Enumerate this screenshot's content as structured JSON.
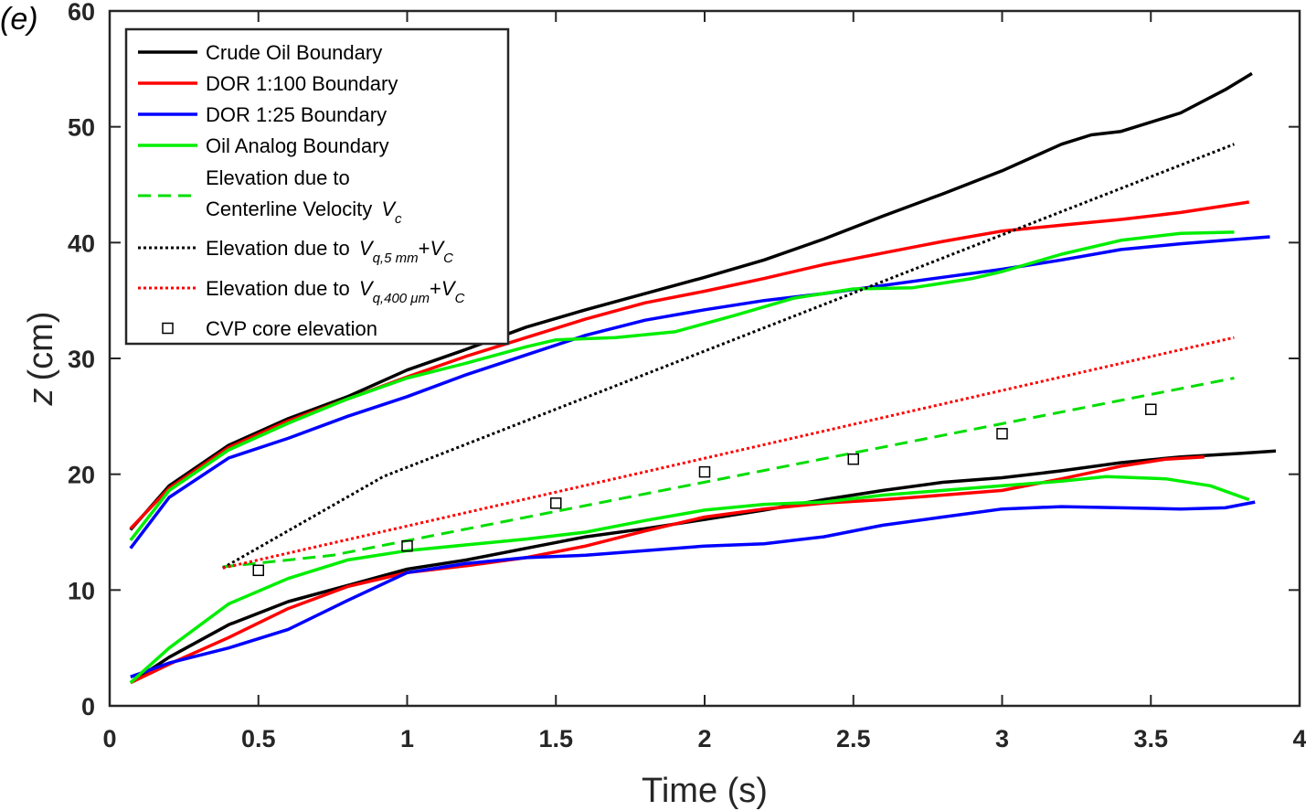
{
  "panel_label": "(e)",
  "chart_data": {
    "type": "line",
    "xlabel": "Time (s)",
    "ylabel": "z (cm)",
    "ylabel_var": "z",
    "ylabel_unit": "(cm)",
    "xlim": [
      0,
      4
    ],
    "ylim": [
      0,
      60
    ],
    "xticks": [
      0,
      0.5,
      1,
      1.5,
      2,
      2.5,
      3,
      3.5,
      4
    ],
    "xtick_labels": [
      "0",
      "0.5",
      "1",
      "1.5",
      "2",
      "2.5",
      "3",
      "3.5",
      "4"
    ],
    "yticks": [
      0,
      10,
      20,
      30,
      40,
      50,
      60
    ],
    "ytick_labels": [
      "0",
      "10",
      "20",
      "30",
      "40",
      "50",
      "60"
    ],
    "grid": false,
    "legend_position": "top-left",
    "series": [
      {
        "name": "Crude Oil Boundary",
        "color": "#000000",
        "style": "solid",
        "upper": [
          [
            0.07,
            15.2
          ],
          [
            0.2,
            19.0
          ],
          [
            0.4,
            22.5
          ],
          [
            0.6,
            24.8
          ],
          [
            0.8,
            26.7
          ],
          [
            1.0,
            29.0
          ],
          [
            1.2,
            30.8
          ],
          [
            1.4,
            32.7
          ],
          [
            1.6,
            34.2
          ],
          [
            1.8,
            35.6
          ],
          [
            2.0,
            37.0
          ],
          [
            2.2,
            38.5
          ],
          [
            2.4,
            40.3
          ],
          [
            2.6,
            42.3
          ],
          [
            2.8,
            44.2
          ],
          [
            3.0,
            46.2
          ],
          [
            3.2,
            48.5
          ],
          [
            3.3,
            49.3
          ],
          [
            3.4,
            49.6
          ],
          [
            3.6,
            51.2
          ],
          [
            3.75,
            53.2
          ],
          [
            3.84,
            54.6
          ]
        ],
        "lower": [
          [
            0.07,
            2.0
          ],
          [
            0.2,
            4.2
          ],
          [
            0.4,
            7.0
          ],
          [
            0.6,
            9.0
          ],
          [
            0.8,
            10.4
          ],
          [
            1.0,
            11.8
          ],
          [
            1.2,
            12.6
          ],
          [
            1.4,
            13.6
          ],
          [
            1.6,
            14.6
          ],
          [
            1.8,
            15.3
          ],
          [
            2.0,
            16.1
          ],
          [
            2.2,
            16.9
          ],
          [
            2.4,
            17.8
          ],
          [
            2.6,
            18.6
          ],
          [
            2.8,
            19.3
          ],
          [
            3.0,
            19.7
          ],
          [
            3.2,
            20.3
          ],
          [
            3.4,
            21.0
          ],
          [
            3.6,
            21.5
          ],
          [
            3.8,
            21.8
          ],
          [
            3.92,
            22.0
          ]
        ]
      },
      {
        "name": "DOR 1:100 Boundary",
        "color": "#ff0000",
        "style": "solid",
        "upper": [
          [
            0.07,
            15.3
          ],
          [
            0.2,
            18.8
          ],
          [
            0.4,
            22.3
          ],
          [
            0.6,
            24.6
          ],
          [
            0.8,
            26.5
          ],
          [
            1.0,
            28.4
          ],
          [
            1.2,
            30.2
          ],
          [
            1.4,
            31.8
          ],
          [
            1.6,
            33.4
          ],
          [
            1.8,
            34.8
          ],
          [
            2.0,
            35.8
          ],
          [
            2.2,
            36.9
          ],
          [
            2.4,
            38.1
          ],
          [
            2.6,
            39.1
          ],
          [
            2.8,
            40.1
          ],
          [
            3.0,
            41.0
          ],
          [
            3.2,
            41.5
          ],
          [
            3.4,
            42.0
          ],
          [
            3.6,
            42.6
          ],
          [
            3.83,
            43.5
          ]
        ],
        "lower": [
          [
            0.07,
            2.0
          ],
          [
            0.2,
            3.6
          ],
          [
            0.4,
            5.9
          ],
          [
            0.6,
            8.4
          ],
          [
            0.8,
            10.3
          ],
          [
            1.0,
            11.5
          ],
          [
            1.2,
            12.1
          ],
          [
            1.4,
            12.8
          ],
          [
            1.6,
            13.8
          ],
          [
            1.8,
            15.1
          ],
          [
            2.0,
            16.3
          ],
          [
            2.2,
            17.0
          ],
          [
            2.4,
            17.5
          ],
          [
            2.6,
            17.8
          ],
          [
            2.8,
            18.2
          ],
          [
            3.0,
            18.6
          ],
          [
            3.2,
            19.6
          ],
          [
            3.4,
            20.7
          ],
          [
            3.55,
            21.3
          ],
          [
            3.68,
            21.5
          ]
        ]
      },
      {
        "name": "DOR 1:25 Boundary",
        "color": "#0000ff",
        "style": "solid",
        "upper": [
          [
            0.07,
            13.6
          ],
          [
            0.2,
            18.0
          ],
          [
            0.4,
            21.4
          ],
          [
            0.6,
            23.1
          ],
          [
            0.8,
            25.0
          ],
          [
            1.0,
            26.7
          ],
          [
            1.2,
            28.6
          ],
          [
            1.4,
            30.3
          ],
          [
            1.6,
            32.0
          ],
          [
            1.8,
            33.3
          ],
          [
            2.0,
            34.2
          ],
          [
            2.2,
            35.0
          ],
          [
            2.4,
            35.6
          ],
          [
            2.6,
            36.3
          ],
          [
            2.8,
            37.0
          ],
          [
            3.0,
            37.7
          ],
          [
            3.2,
            38.5
          ],
          [
            3.4,
            39.4
          ],
          [
            3.6,
            39.9
          ],
          [
            3.8,
            40.3
          ],
          [
            3.9,
            40.5
          ]
        ],
        "lower": [
          [
            0.07,
            2.5
          ],
          [
            0.2,
            3.7
          ],
          [
            0.4,
            5.0
          ],
          [
            0.6,
            6.6
          ],
          [
            0.8,
            9.1
          ],
          [
            1.0,
            11.5
          ],
          [
            1.2,
            12.3
          ],
          [
            1.4,
            12.8
          ],
          [
            1.6,
            13.0
          ],
          [
            1.8,
            13.4
          ],
          [
            2.0,
            13.8
          ],
          [
            2.2,
            14.0
          ],
          [
            2.4,
            14.6
          ],
          [
            2.6,
            15.6
          ],
          [
            2.8,
            16.3
          ],
          [
            3.0,
            17.0
          ],
          [
            3.2,
            17.2
          ],
          [
            3.4,
            17.1
          ],
          [
            3.6,
            17.0
          ],
          [
            3.75,
            17.1
          ],
          [
            3.85,
            17.6
          ]
        ]
      },
      {
        "name": "Oil Analog Boundary",
        "color": "#00ee00",
        "style": "solid",
        "upper": [
          [
            0.07,
            14.3
          ],
          [
            0.2,
            18.6
          ],
          [
            0.4,
            22.1
          ],
          [
            0.6,
            24.4
          ],
          [
            0.8,
            26.5
          ],
          [
            1.0,
            28.3
          ],
          [
            1.2,
            29.6
          ],
          [
            1.4,
            31.0
          ],
          [
            1.5,
            31.6
          ],
          [
            1.7,
            31.8
          ],
          [
            1.9,
            32.3
          ],
          [
            2.1,
            33.7
          ],
          [
            2.3,
            35.2
          ],
          [
            2.5,
            36.0
          ],
          [
            2.7,
            36.1
          ],
          [
            2.9,
            36.9
          ],
          [
            3.0,
            37.5
          ],
          [
            3.2,
            39.0
          ],
          [
            3.4,
            40.2
          ],
          [
            3.6,
            40.8
          ],
          [
            3.78,
            40.9
          ]
        ],
        "lower": [
          [
            0.07,
            2.0
          ],
          [
            0.2,
            5.0
          ],
          [
            0.4,
            8.8
          ],
          [
            0.6,
            11.0
          ],
          [
            0.8,
            12.6
          ],
          [
            1.0,
            13.4
          ],
          [
            1.2,
            13.9
          ],
          [
            1.4,
            14.4
          ],
          [
            1.6,
            15.0
          ],
          [
            1.8,
            16.0
          ],
          [
            2.0,
            16.9
          ],
          [
            2.2,
            17.4
          ],
          [
            2.4,
            17.6
          ],
          [
            2.6,
            18.2
          ],
          [
            2.8,
            18.6
          ],
          [
            3.0,
            19.0
          ],
          [
            3.2,
            19.4
          ],
          [
            3.35,
            19.8
          ],
          [
            3.55,
            19.6
          ],
          [
            3.7,
            19.0
          ],
          [
            3.83,
            17.8
          ]
        ]
      },
      {
        "name": "Elevation due to Centerline Velocity V_c",
        "legend_lines": [
          "Elevation due to",
          "Centerline Velocity"
        ],
        "legend_var": "V",
        "legend_sub": "c",
        "color": "#00dd00",
        "style": "dashed",
        "points": [
          [
            0.38,
            12.0
          ],
          [
            0.75,
            13.0
          ],
          [
            3.78,
            28.3
          ]
        ]
      },
      {
        "name": "Elevation due to V_q,5 mm+V_C",
        "legend_prefix": "Elevation due to",
        "legend_var1": "V",
        "legend_sub1": "q,5 mm",
        "legend_plus": "+",
        "legend_var2": "V",
        "legend_sub2": "C",
        "color": "#000000",
        "style": "dotted",
        "points": [
          [
            0.38,
            11.9
          ],
          [
            0.92,
            19.8
          ],
          [
            3.78,
            48.5
          ]
        ]
      },
      {
        "name": "Elevation due to V_q,400 μm+V_C",
        "legend_prefix": "Elevation due to",
        "legend_var1": "V",
        "legend_sub1": "q,400 μm",
        "legend_plus": "+",
        "legend_var2": "V",
        "legend_sub2": "C",
        "color": "#ff0000",
        "style": "dotted",
        "points": [
          [
            0.38,
            11.9
          ],
          [
            3.78,
            31.8
          ]
        ]
      },
      {
        "name": "CVP core elevation",
        "color": "#000000",
        "style": "marker-square",
        "points": [
          [
            0.5,
            11.7
          ],
          [
            1.0,
            13.8
          ],
          [
            1.5,
            17.5
          ],
          [
            2.0,
            20.2
          ],
          [
            2.5,
            21.3
          ],
          [
            3.0,
            23.5
          ],
          [
            3.5,
            25.6
          ]
        ]
      }
    ]
  }
}
